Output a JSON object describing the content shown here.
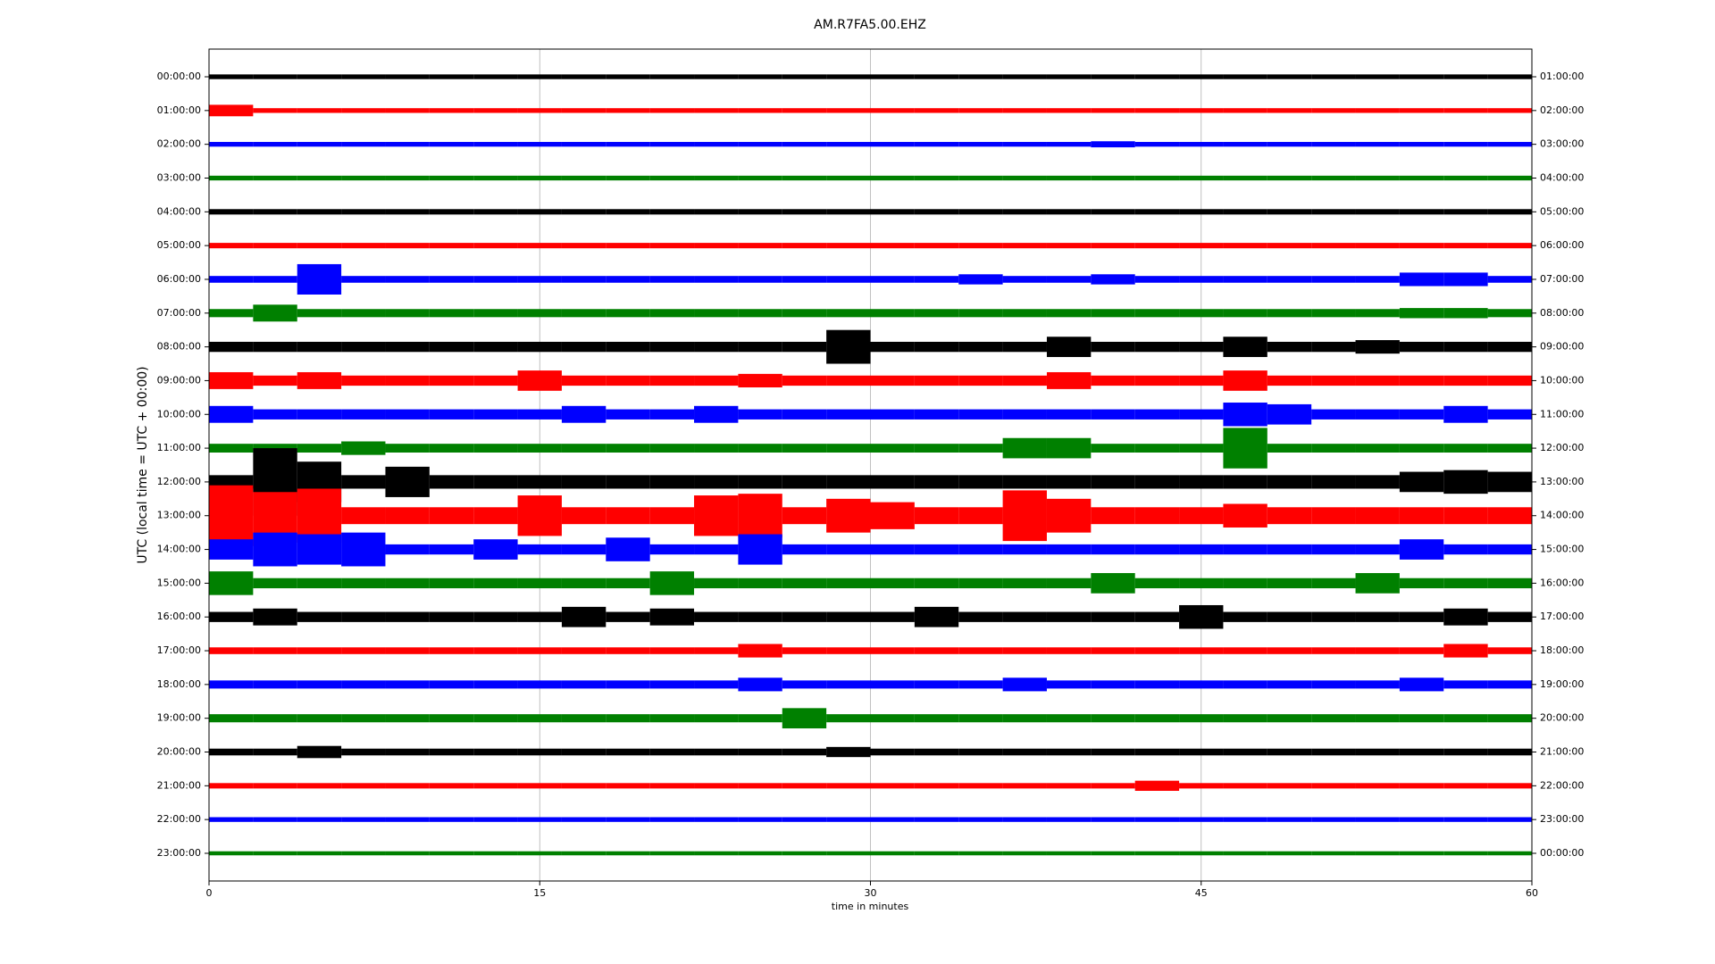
{
  "chart_data": {
    "type": "helicorder",
    "title": "AM.R7FA5.00.EHZ",
    "xlabel": "time in minutes",
    "ylabel": "UTC (local time = UTC + 00:00)",
    "xlim": [
      0,
      60
    ],
    "xticks": [
      0,
      15,
      30,
      45,
      60
    ],
    "grid": true,
    "ylim": [
      23.82,
      -0.82
    ],
    "yticks": [
      {
        "value": 0,
        "label": "00:00:00"
      },
      {
        "value": 1,
        "label": "01:00:00"
      },
      {
        "value": 2,
        "label": "02:00:00"
      },
      {
        "value": 3,
        "label": "03:00:00"
      },
      {
        "value": 4,
        "label": "04:00:00"
      },
      {
        "value": 5,
        "label": "05:00:00"
      },
      {
        "value": 6,
        "label": "06:00:00"
      },
      {
        "value": 7,
        "label": "07:00:00"
      },
      {
        "value": 8,
        "label": "08:00:00"
      },
      {
        "value": 9,
        "label": "09:00:00"
      },
      {
        "value": 10,
        "label": "10:00:00"
      },
      {
        "value": 11,
        "label": "11:00:00"
      },
      {
        "value": 12,
        "label": "12:00:00"
      },
      {
        "value": 13,
        "label": "13:00:00"
      },
      {
        "value": 14,
        "label": "14:00:00"
      },
      {
        "value": 15,
        "label": "15:00:00"
      },
      {
        "value": 16,
        "label": "16:00:00"
      },
      {
        "value": 17,
        "label": "17:00:00"
      },
      {
        "value": 18,
        "label": "18:00:00"
      },
      {
        "value": 19,
        "label": "19:00:00"
      },
      {
        "value": 20,
        "label": "20:00:00"
      },
      {
        "value": 21,
        "label": "21:00:00"
      },
      {
        "value": 22,
        "label": "22:00:00"
      },
      {
        "value": 23,
        "label": "23:00:00"
      }
    ],
    "y2lim": [
      23.82,
      -0.82
    ],
    "y2ticks": [
      {
        "value": 0,
        "label": "01:00:00"
      },
      {
        "value": 1,
        "label": "02:00:00"
      },
      {
        "value": 2,
        "label": "03:00:00"
      },
      {
        "value": 3,
        "label": "04:00:00"
      },
      {
        "value": 4,
        "label": "05:00:00"
      },
      {
        "value": 5,
        "label": "06:00:00"
      },
      {
        "value": 6,
        "label": "07:00:00"
      },
      {
        "value": 7,
        "label": "08:00:00"
      },
      {
        "value": 8,
        "label": "09:00:00"
      },
      {
        "value": 9,
        "label": "10:00:00"
      },
      {
        "value": 10,
        "label": "11:00:00"
      },
      {
        "value": 11,
        "label": "12:00:00"
      },
      {
        "value": 12,
        "label": "13:00:00"
      },
      {
        "value": 13,
        "label": "14:00:00"
      },
      {
        "value": 14,
        "label": "15:00:00"
      },
      {
        "value": 15,
        "label": "16:00:00"
      },
      {
        "value": 16,
        "label": "17:00:00"
      },
      {
        "value": 17,
        "label": "18:00:00"
      },
      {
        "value": 18,
        "label": "19:00:00"
      },
      {
        "value": 19,
        "label": "20:00:00"
      },
      {
        "value": 20,
        "label": "21:00:00"
      },
      {
        "value": 21,
        "label": "22:00:00"
      },
      {
        "value": 22,
        "label": "23:00:00"
      },
      {
        "value": 23,
        "label": "00:00:00"
      }
    ],
    "x": [
      1,
      3,
      5,
      7,
      9,
      11,
      13,
      15,
      17,
      19,
      21,
      23,
      25,
      27,
      29,
      31,
      33,
      35,
      37,
      39,
      41,
      43,
      45,
      47,
      49,
      51,
      53,
      55,
      57,
      59
    ],
    "series": [
      {
        "color": "#000000",
        "values": [
          0.07,
          0.07,
          0.07,
          0.07,
          0.07,
          0.07,
          0.07,
          0.07,
          0.07,
          0.07,
          0.07,
          0.07,
          0.07,
          0.07,
          0.07,
          0.07,
          0.07,
          0.07,
          0.07,
          0.07,
          0.07,
          0.07,
          0.07,
          0.07,
          0.07,
          0.07,
          0.07,
          0.07,
          0.07,
          0.07
        ]
      },
      {
        "color": "#ff0000",
        "values": [
          0.17,
          0.07,
          0.07,
          0.07,
          0.07,
          0.07,
          0.07,
          0.07,
          0.07,
          0.07,
          0.07,
          0.07,
          0.07,
          0.07,
          0.07,
          0.07,
          0.07,
          0.07,
          0.07,
          0.07,
          0.07,
          0.07,
          0.07,
          0.07,
          0.07,
          0.07,
          0.07,
          0.07,
          0.07,
          0.07
        ]
      },
      {
        "color": "#0000ff",
        "values": [
          0.07,
          0.07,
          0.07,
          0.07,
          0.07,
          0.07,
          0.07,
          0.07,
          0.07,
          0.07,
          0.07,
          0.07,
          0.07,
          0.07,
          0.07,
          0.07,
          0.07,
          0.07,
          0.07,
          0.07,
          0.09,
          0.07,
          0.07,
          0.07,
          0.07,
          0.07,
          0.07,
          0.07,
          0.07,
          0.07
        ]
      },
      {
        "color": "#008000",
        "values": [
          0.07,
          0.07,
          0.07,
          0.07,
          0.07,
          0.07,
          0.07,
          0.07,
          0.07,
          0.07,
          0.07,
          0.07,
          0.07,
          0.07,
          0.07,
          0.07,
          0.07,
          0.07,
          0.07,
          0.07,
          0.07,
          0.07,
          0.07,
          0.07,
          0.07,
          0.07,
          0.07,
          0.07,
          0.07,
          0.07
        ]
      },
      {
        "color": "#000000",
        "values": [
          0.08,
          0.08,
          0.08,
          0.08,
          0.08,
          0.08,
          0.08,
          0.08,
          0.08,
          0.08,
          0.08,
          0.08,
          0.08,
          0.08,
          0.08,
          0.08,
          0.08,
          0.08,
          0.08,
          0.08,
          0.08,
          0.08,
          0.08,
          0.08,
          0.08,
          0.08,
          0.08,
          0.08,
          0.08,
          0.08
        ]
      },
      {
        "color": "#ff0000",
        "values": [
          0.08,
          0.08,
          0.08,
          0.08,
          0.08,
          0.08,
          0.08,
          0.08,
          0.08,
          0.08,
          0.08,
          0.08,
          0.08,
          0.08,
          0.08,
          0.08,
          0.08,
          0.08,
          0.08,
          0.08,
          0.08,
          0.08,
          0.08,
          0.08,
          0.08,
          0.08,
          0.08,
          0.08,
          0.08,
          0.08
        ]
      },
      {
        "color": "#0000ff",
        "values": [
          0.1,
          0.1,
          0.45,
          0.1,
          0.1,
          0.1,
          0.1,
          0.1,
          0.1,
          0.1,
          0.1,
          0.1,
          0.1,
          0.1,
          0.1,
          0.1,
          0.1,
          0.15,
          0.1,
          0.1,
          0.15,
          0.1,
          0.1,
          0.1,
          0.1,
          0.1,
          0.1,
          0.2,
          0.2,
          0.1
        ]
      },
      {
        "color": "#008000",
        "values": [
          0.12,
          0.25,
          0.12,
          0.12,
          0.12,
          0.12,
          0.12,
          0.12,
          0.12,
          0.12,
          0.12,
          0.12,
          0.12,
          0.12,
          0.12,
          0.12,
          0.12,
          0.12,
          0.12,
          0.12,
          0.12,
          0.12,
          0.12,
          0.12,
          0.12,
          0.12,
          0.12,
          0.15,
          0.15,
          0.12
        ]
      },
      {
        "color": "#000000",
        "values": [
          0.15,
          0.15,
          0.15,
          0.15,
          0.15,
          0.15,
          0.15,
          0.15,
          0.15,
          0.15,
          0.15,
          0.15,
          0.15,
          0.15,
          0.5,
          0.15,
          0.15,
          0.15,
          0.15,
          0.3,
          0.15,
          0.15,
          0.15,
          0.3,
          0.15,
          0.15,
          0.2,
          0.15,
          0.15,
          0.15
        ]
      },
      {
        "color": "#ff0000",
        "values": [
          0.25,
          0.15,
          0.25,
          0.15,
          0.15,
          0.15,
          0.15,
          0.3,
          0.15,
          0.15,
          0.15,
          0.15,
          0.2,
          0.15,
          0.15,
          0.15,
          0.15,
          0.15,
          0.15,
          0.25,
          0.15,
          0.15,
          0.15,
          0.3,
          0.15,
          0.15,
          0.15,
          0.15,
          0.15,
          0.15
        ]
      },
      {
        "color": "#0000ff",
        "values": [
          0.25,
          0.15,
          0.15,
          0.15,
          0.15,
          0.15,
          0.15,
          0.15,
          0.25,
          0.15,
          0.15,
          0.25,
          0.15,
          0.15,
          0.15,
          0.15,
          0.15,
          0.15,
          0.15,
          0.15,
          0.15,
          0.15,
          0.15,
          0.35,
          0.3,
          0.15,
          0.15,
          0.15,
          0.25,
          0.15
        ]
      },
      {
        "color": "#008000",
        "values": [
          0.13,
          0.13,
          0.13,
          0.2,
          0.13,
          0.13,
          0.13,
          0.13,
          0.13,
          0.13,
          0.13,
          0.13,
          0.13,
          0.13,
          0.13,
          0.13,
          0.13,
          0.13,
          0.3,
          0.3,
          0.13,
          0.13,
          0.13,
          0.6,
          0.13,
          0.13,
          0.13,
          0.13,
          0.13,
          0.13
        ]
      },
      {
        "color": "#000000",
        "values": [
          0.2,
          1.0,
          0.6,
          0.2,
          0.45,
          0.2,
          0.2,
          0.2,
          0.2,
          0.2,
          0.2,
          0.2,
          0.2,
          0.2,
          0.2,
          0.2,
          0.2,
          0.2,
          0.2,
          0.2,
          0.2,
          0.2,
          0.2,
          0.2,
          0.2,
          0.2,
          0.2,
          0.3,
          0.35,
          0.3
        ]
      },
      {
        "color": "#ff0000",
        "values": [
          0.9,
          0.7,
          0.8,
          0.25,
          0.25,
          0.25,
          0.25,
          0.6,
          0.25,
          0.25,
          0.25,
          0.6,
          0.65,
          0.25,
          0.5,
          0.4,
          0.25,
          0.25,
          0.75,
          0.5,
          0.25,
          0.25,
          0.25,
          0.35,
          0.25,
          0.25,
          0.25,
          0.25,
          0.25,
          0.25
        ]
      },
      {
        "color": "#0000ff",
        "values": [
          0.3,
          0.5,
          0.45,
          0.5,
          0.15,
          0.15,
          0.3,
          0.15,
          0.15,
          0.35,
          0.15,
          0.15,
          0.45,
          0.15,
          0.15,
          0.15,
          0.15,
          0.15,
          0.15,
          0.15,
          0.15,
          0.15,
          0.15,
          0.15,
          0.15,
          0.15,
          0.15,
          0.3,
          0.15,
          0.15
        ]
      },
      {
        "color": "#008000",
        "values": [
          0.35,
          0.15,
          0.15,
          0.15,
          0.15,
          0.15,
          0.15,
          0.15,
          0.15,
          0.15,
          0.35,
          0.15,
          0.15,
          0.15,
          0.15,
          0.15,
          0.15,
          0.15,
          0.15,
          0.15,
          0.3,
          0.15,
          0.15,
          0.15,
          0.15,
          0.15,
          0.3,
          0.15,
          0.15,
          0.15
        ]
      },
      {
        "color": "#000000",
        "values": [
          0.15,
          0.25,
          0.15,
          0.15,
          0.15,
          0.15,
          0.15,
          0.15,
          0.3,
          0.15,
          0.25,
          0.15,
          0.15,
          0.15,
          0.15,
          0.15,
          0.3,
          0.15,
          0.15,
          0.15,
          0.15,
          0.15,
          0.35,
          0.15,
          0.15,
          0.15,
          0.15,
          0.15,
          0.25,
          0.15
        ]
      },
      {
        "color": "#ff0000",
        "values": [
          0.1,
          0.1,
          0.1,
          0.1,
          0.1,
          0.1,
          0.1,
          0.1,
          0.1,
          0.1,
          0.1,
          0.1,
          0.2,
          0.1,
          0.1,
          0.1,
          0.1,
          0.1,
          0.1,
          0.1,
          0.1,
          0.1,
          0.1,
          0.1,
          0.1,
          0.1,
          0.1,
          0.1,
          0.2,
          0.1
        ]
      },
      {
        "color": "#0000ff",
        "values": [
          0.12,
          0.12,
          0.12,
          0.12,
          0.12,
          0.12,
          0.12,
          0.12,
          0.12,
          0.12,
          0.12,
          0.12,
          0.2,
          0.12,
          0.12,
          0.12,
          0.12,
          0.12,
          0.2,
          0.12,
          0.12,
          0.12,
          0.12,
          0.12,
          0.12,
          0.12,
          0.12,
          0.2,
          0.12,
          0.12
        ]
      },
      {
        "color": "#008000",
        "values": [
          0.12,
          0.12,
          0.12,
          0.12,
          0.12,
          0.12,
          0.12,
          0.12,
          0.12,
          0.12,
          0.12,
          0.12,
          0.12,
          0.3,
          0.12,
          0.12,
          0.12,
          0.12,
          0.12,
          0.12,
          0.12,
          0.12,
          0.12,
          0.12,
          0.12,
          0.12,
          0.12,
          0.12,
          0.12,
          0.12
        ]
      },
      {
        "color": "#000000",
        "values": [
          0.1,
          0.1,
          0.18,
          0.1,
          0.1,
          0.1,
          0.1,
          0.1,
          0.1,
          0.1,
          0.1,
          0.1,
          0.1,
          0.1,
          0.15,
          0.1,
          0.1,
          0.1,
          0.1,
          0.1,
          0.1,
          0.1,
          0.1,
          0.1,
          0.1,
          0.1,
          0.1,
          0.1,
          0.1,
          0.1
        ]
      },
      {
        "color": "#ff0000",
        "values": [
          0.08,
          0.08,
          0.08,
          0.08,
          0.08,
          0.08,
          0.08,
          0.08,
          0.08,
          0.08,
          0.08,
          0.08,
          0.08,
          0.08,
          0.08,
          0.08,
          0.08,
          0.08,
          0.08,
          0.08,
          0.08,
          0.15,
          0.08,
          0.08,
          0.08,
          0.08,
          0.08,
          0.08,
          0.08,
          0.08
        ]
      },
      {
        "color": "#0000ff",
        "values": [
          0.07,
          0.07,
          0.07,
          0.07,
          0.07,
          0.07,
          0.07,
          0.07,
          0.07,
          0.07,
          0.07,
          0.07,
          0.07,
          0.07,
          0.07,
          0.07,
          0.07,
          0.07,
          0.07,
          0.07,
          0.07,
          0.07,
          0.07,
          0.07,
          0.07,
          0.07,
          0.07,
          0.07,
          0.07,
          0.07
        ]
      },
      {
        "color": "#008000",
        "values": [
          0.06,
          0.06,
          0.06,
          0.06,
          0.06,
          0.06,
          0.06,
          0.06,
          0.06,
          0.06,
          0.06,
          0.06,
          0.06,
          0.06,
          0.06,
          0.06,
          0.06,
          0.06,
          0.06,
          0.06,
          0.06,
          0.06,
          0.06,
          0.06,
          0.06,
          0.06,
          0.06,
          0.06,
          0.06,
          0.06
        ]
      }
    ]
  }
}
